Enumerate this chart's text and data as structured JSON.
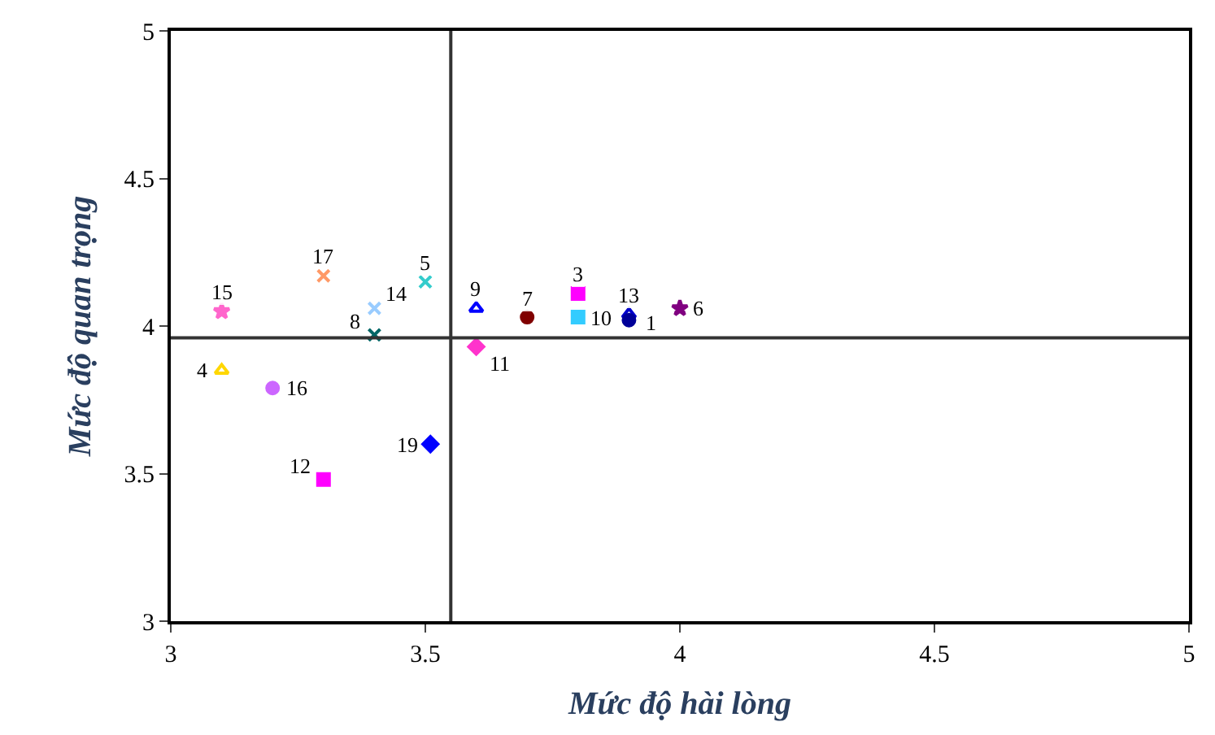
{
  "chart_data": {
    "type": "scatter",
    "xlabel": "Mức độ hài lòng",
    "ylabel": "Mức độ quan trọng",
    "xlim": [
      3,
      5
    ],
    "xticks": [
      3,
      3.5,
      4,
      4.5,
      5
    ],
    "ylim": [
      3,
      5
    ],
    "yticks": [
      3,
      3.5,
      4,
      4.5,
      5
    ],
    "grid": false,
    "legend": false,
    "ref_lines": [
      {
        "axis": "x",
        "value": 3.55,
        "color": "#333333"
      },
      {
        "axis": "y",
        "value": 3.96,
        "color": "#333333"
      }
    ],
    "series": [
      {
        "name": "1",
        "color": "#000099",
        "marker": "circle",
        "x": [
          3.9
        ],
        "values": [
          4.02
        ]
      },
      {
        "name": "3",
        "color": "#ff00ff",
        "marker": "square",
        "x": [
          3.8
        ],
        "values": [
          4.11
        ]
      },
      {
        "name": "4",
        "color": "#ffd700",
        "marker": "triangle",
        "x": [
          3.1
        ],
        "values": [
          3.85
        ]
      },
      {
        "name": "5",
        "color": "#33cccc",
        "marker": "cross",
        "x": [
          3.5
        ],
        "values": [
          4.15
        ]
      },
      {
        "name": "6",
        "color": "#800080",
        "marker": "star",
        "x": [
          4.0
        ],
        "values": [
          4.06
        ]
      },
      {
        "name": "7",
        "color": "#800000",
        "marker": "circle",
        "x": [
          3.7
        ],
        "values": [
          4.03
        ]
      },
      {
        "name": "8",
        "color": "#006666",
        "marker": "cross",
        "x": [
          3.4
        ],
        "values": [
          3.97
        ]
      },
      {
        "name": "9",
        "color": "#0000ff",
        "marker": "triangle",
        "x": [
          3.6
        ],
        "values": [
          4.06
        ]
      },
      {
        "name": "10",
        "color": "#33ccff",
        "marker": "square",
        "x": [
          3.8
        ],
        "values": [
          4.03
        ]
      },
      {
        "name": "11",
        "color": "#ff33cc",
        "marker": "diamond",
        "x": [
          3.6
        ],
        "values": [
          3.93
        ]
      },
      {
        "name": "12",
        "color": "#ff00ff",
        "marker": "square",
        "x": [
          3.3
        ],
        "values": [
          3.48
        ]
      },
      {
        "name": "13",
        "color": "#0000cc",
        "marker": "triangle",
        "x": [
          3.9
        ],
        "values": [
          4.04
        ]
      },
      {
        "name": "14",
        "color": "#99ccff",
        "marker": "cross",
        "x": [
          3.4
        ],
        "values": [
          4.06
        ]
      },
      {
        "name": "15",
        "color": "#ff66cc",
        "marker": "star",
        "x": [
          3.1
        ],
        "values": [
          4.05
        ]
      },
      {
        "name": "16",
        "color": "#cc66ff",
        "marker": "circle",
        "x": [
          3.2
        ],
        "values": [
          3.79
        ]
      },
      {
        "name": "17",
        "color": "#ff9966",
        "marker": "cross",
        "x": [
          3.3
        ],
        "values": [
          4.17
        ]
      },
      {
        "name": "19",
        "color": "#0000ff",
        "marker": "diamond",
        "x": [
          3.51
        ],
        "values": [
          3.6
        ]
      }
    ]
  }
}
